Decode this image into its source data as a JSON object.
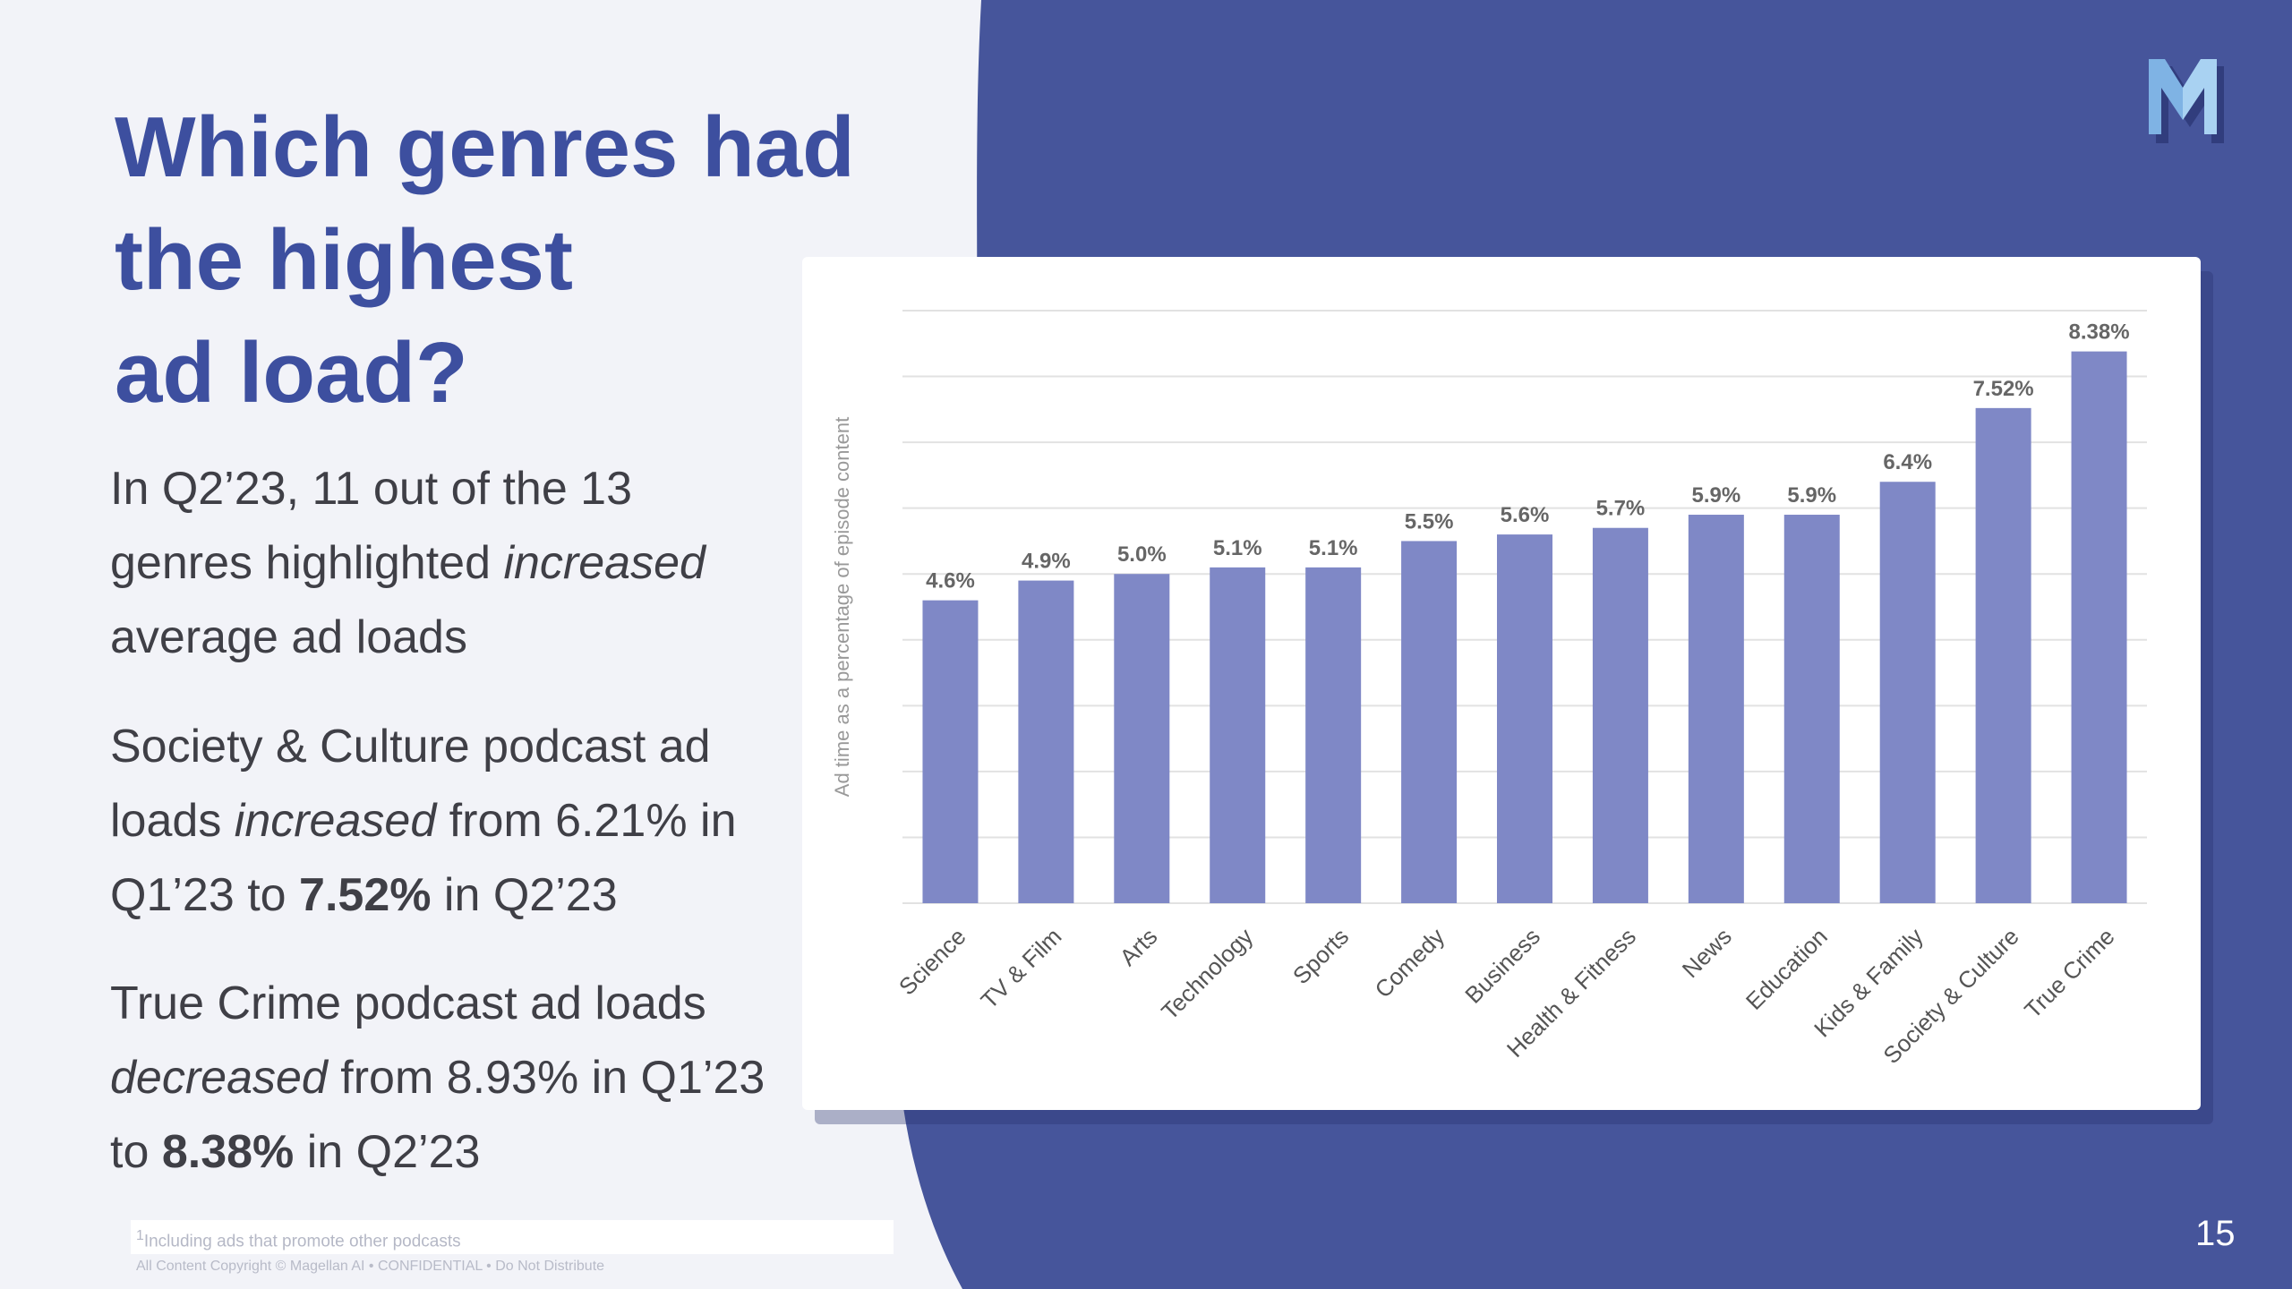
{
  "slide": {
    "title_lines": [
      "Which genres had",
      "the highest",
      "ad load?"
    ],
    "paragraph1": {
      "line1": "In Q2’23, 11 out of the 13",
      "line2_pre": "genres highlighted ",
      "line2_em": "increased",
      "line3": "average ad loads"
    },
    "paragraph2": {
      "line1": "Society & Culture podcast ad",
      "line2_pre": "loads ",
      "line2_em": "increased",
      "line2_post": " from 6.21% in",
      "line3_pre": "Q1’23 to ",
      "line3_bold": "7.52%",
      "line3_post": " in Q2’23"
    },
    "paragraph3": {
      "line1": "True Crime podcast ad loads",
      "line2_em": "decreased",
      "line2_post": " from 8.93% in Q1’23",
      "line3_pre": "to ",
      "line3_bold": "8.38%",
      "line3_post": " in Q2’23"
    },
    "footnote_sup": "1",
    "footnote": "Including ads that promote other podcasts",
    "copyright": "All Content Copyright © Magellan AI  •  CONFIDENTIAL  •  Do Not Distribute",
    "page_number": "15",
    "logo_icon": "magellan-m-logo"
  },
  "colors": {
    "title": "#3d4f9f",
    "panel_bg": "#46559b",
    "bar": "#7f88c6",
    "light_bg": "#f2f3f8"
  },
  "chart_data": {
    "type": "bar",
    "ylabel": "Ad time as a percentage of episode content",
    "categories": [
      "Science",
      "TV & Film",
      "Arts",
      "Technology",
      "Sports",
      "Comedy",
      "Business",
      "Health & Fitness",
      "News",
      "Education",
      "Kids & Family",
      "Society & Culture",
      "True Crime"
    ],
    "values": [
      4.6,
      4.9,
      5.0,
      5.1,
      5.1,
      5.5,
      5.6,
      5.7,
      5.9,
      5.9,
      6.4,
      7.52,
      8.38
    ],
    "data_labels": [
      "4.6%",
      "4.9%",
      "5.0%",
      "5.1%",
      "5.1%",
      "5.5%",
      "5.6%",
      "5.7%",
      "5.9%",
      "5.9%",
      "6.4%",
      "7.52%",
      "8.38%"
    ],
    "ylim": [
      0,
      9
    ],
    "gridlines": true,
    "legend": "none"
  }
}
